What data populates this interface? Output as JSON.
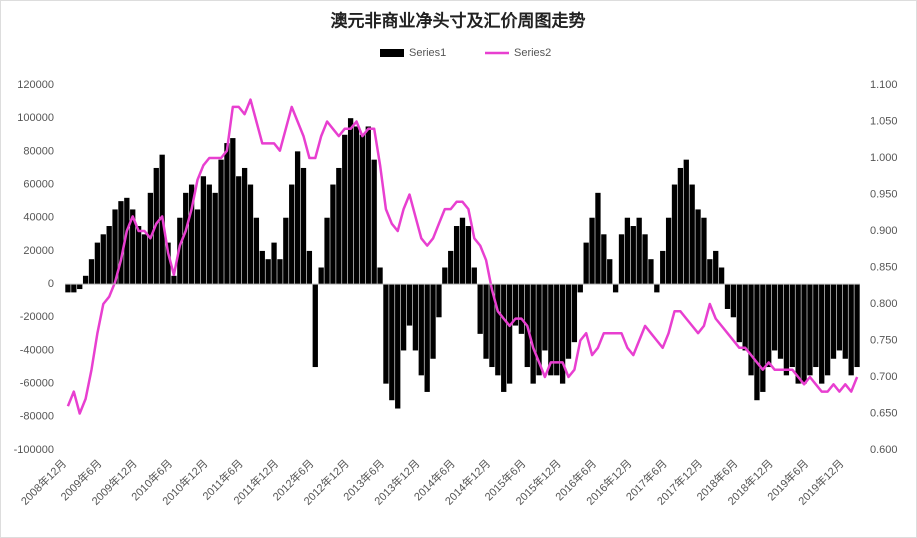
{
  "chart_data": {
    "type": "bar_line",
    "title": "澳元非商业净头寸及汇价周图走势",
    "categories": [
      "2008年12月",
      null,
      null,
      null,
      null,
      null,
      "2009年6月",
      null,
      null,
      null,
      null,
      null,
      "2009年12月",
      null,
      null,
      null,
      null,
      null,
      "2010年6月",
      null,
      null,
      null,
      null,
      null,
      "2010年12月",
      null,
      null,
      null,
      null,
      null,
      "2011年6月",
      null,
      null,
      null,
      null,
      null,
      "2011年12月",
      null,
      null,
      null,
      null,
      null,
      "2012年6月",
      null,
      null,
      null,
      null,
      null,
      "2012年12月",
      null,
      null,
      null,
      null,
      null,
      "2013年6月",
      null,
      null,
      null,
      null,
      null,
      "2013年12月",
      null,
      null,
      null,
      null,
      null,
      "2014年6月",
      null,
      null,
      null,
      null,
      null,
      "2014年12月",
      null,
      null,
      null,
      null,
      null,
      "2015年6月",
      null,
      null,
      null,
      null,
      null,
      "2015年12月",
      null,
      null,
      null,
      null,
      null,
      "2016年6月",
      null,
      null,
      null,
      null,
      null,
      "2016年12月",
      null,
      null,
      null,
      null,
      null,
      "2017年6月",
      null,
      null,
      null,
      null,
      null,
      "2017年12月",
      null,
      null,
      null,
      null,
      null,
      "2018年6月",
      null,
      null,
      null,
      null,
      null,
      "2018年12月",
      null,
      null,
      null,
      null,
      null,
      "2019年6月",
      null,
      null,
      null,
      null,
      null,
      "2019年12月",
      null,
      null
    ],
    "series": [
      {
        "name": "Series1",
        "color": "#000000",
        "values": [
          -5000,
          -5000,
          -3000,
          5000,
          15000,
          25000,
          30000,
          35000,
          45000,
          50000,
          52000,
          45000,
          35000,
          30000,
          55000,
          70000,
          78000,
          25000,
          5000,
          40000,
          55000,
          60000,
          45000,
          65000,
          60000,
          55000,
          75000,
          85000,
          88000,
          65000,
          70000,
          60000,
          40000,
          20000,
          15000,
          25000,
          15000,
          40000,
          60000,
          80000,
          70000,
          20000,
          -50000,
          10000,
          40000,
          60000,
          70000,
          90000,
          100000,
          95000,
          90000,
          95000,
          75000,
          10000,
          -60000,
          -70000,
          -75000,
          -40000,
          -25000,
          -40000,
          -55000,
          -65000,
          -45000,
          -20000,
          10000,
          20000,
          35000,
          40000,
          35000,
          10000,
          -30000,
          -45000,
          -50000,
          -55000,
          -65000,
          -60000,
          -25000,
          -30000,
          -50000,
          -60000,
          -55000,
          -40000,
          -55000,
          -55000,
          -60000,
          -45000,
          -35000,
          -5000,
          25000,
          40000,
          55000,
          30000,
          15000,
          -5000,
          30000,
          40000,
          35000,
          40000,
          30000,
          15000,
          -5000,
          20000,
          40000,
          60000,
          70000,
          75000,
          60000,
          45000,
          40000,
          15000,
          20000,
          10000,
          -15000,
          -20000,
          -35000,
          -40000,
          -55000,
          -70000,
          -65000,
          -50000,
          -40000,
          -45000,
          -55000,
          -50000,
          -60000,
          -60000,
          -55000,
          -50000,
          -60000,
          -55000,
          -45000,
          -40000,
          -45000,
          -55000,
          -50000
        ]
      },
      {
        "name": "Series2",
        "color": "#e83fd0",
        "axis": "y2",
        "values": [
          0.66,
          0.68,
          0.65,
          0.67,
          0.71,
          0.76,
          0.8,
          0.81,
          0.83,
          0.86,
          0.9,
          0.92,
          0.9,
          0.9,
          0.89,
          0.91,
          0.92,
          0.87,
          0.84,
          0.88,
          0.9,
          0.93,
          0.97,
          0.99,
          1.0,
          1.0,
          1.0,
          1.01,
          1.07,
          1.07,
          1.06,
          1.08,
          1.05,
          1.02,
          1.02,
          1.02,
          1.01,
          1.04,
          1.07,
          1.05,
          1.03,
          1.0,
          1.0,
          1.03,
          1.05,
          1.04,
          1.03,
          1.04,
          1.04,
          1.05,
          1.03,
          1.04,
          1.04,
          0.99,
          0.93,
          0.91,
          0.9,
          0.93,
          0.95,
          0.92,
          0.89,
          0.88,
          0.89,
          0.91,
          0.93,
          0.93,
          0.94,
          0.94,
          0.93,
          0.89,
          0.88,
          0.86,
          0.82,
          0.79,
          0.78,
          0.77,
          0.78,
          0.78,
          0.77,
          0.74,
          0.72,
          0.7,
          0.72,
          0.72,
          0.72,
          0.7,
          0.71,
          0.75,
          0.76,
          0.73,
          0.74,
          0.76,
          0.76,
          0.76,
          0.76,
          0.74,
          0.73,
          0.75,
          0.77,
          0.76,
          0.75,
          0.74,
          0.76,
          0.79,
          0.79,
          0.78,
          0.77,
          0.76,
          0.77,
          0.8,
          0.78,
          0.77,
          0.76,
          0.75,
          0.74,
          0.74,
          0.73,
          0.72,
          0.71,
          0.72,
          0.71,
          0.71,
          0.71,
          0.71,
          0.7,
          0.69,
          0.7,
          0.69,
          0.68,
          0.68,
          0.69,
          0.68,
          0.69,
          0.68,
          0.7
        ]
      }
    ],
    "ylim": [
      -100000,
      120000
    ],
    "yticks": [
      -100000,
      -80000,
      -60000,
      -40000,
      -20000,
      0,
      20000,
      40000,
      60000,
      80000,
      100000,
      120000
    ],
    "y2lim": [
      0.6,
      1.1
    ],
    "y2ticks": [
      {
        "value": 0.6,
        "label": "0.600"
      },
      {
        "value": 0.65,
        "label": "0.650"
      },
      {
        "value": 0.7,
        "label": "0.700"
      },
      {
        "value": 0.75,
        "label": "0.750"
      },
      {
        "value": 0.8,
        "label": "0.800"
      },
      {
        "value": 0.85,
        "label": "0.850"
      },
      {
        "value": 0.9,
        "label": "0.900"
      },
      {
        "value": 0.95,
        "label": "0.950"
      },
      {
        "value": 1.0,
        "label": "1.000"
      },
      {
        "value": 1.05,
        "label": "1.050"
      },
      {
        "value": 1.1,
        "label": "1.100"
      }
    ],
    "legend": "top"
  }
}
